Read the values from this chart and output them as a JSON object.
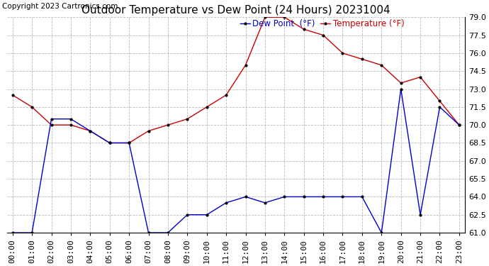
{
  "title": "Outdoor Temperature vs Dew Point (24 Hours) 20231004",
  "copyright_text": "Copyright 2023 Cartronics.com",
  "legend_dew": "Dew Point  (°F)",
  "legend_temp": "Temperature (°F)",
  "hours": [
    0,
    1,
    2,
    3,
    4,
    5,
    6,
    7,
    8,
    9,
    10,
    11,
    12,
    13,
    14,
    15,
    16,
    17,
    18,
    19,
    20,
    21,
    22,
    23
  ],
  "temperature": [
    72.5,
    71.5,
    70.0,
    70.0,
    69.5,
    68.5,
    68.5,
    69.5,
    70.0,
    70.5,
    71.5,
    72.5,
    75.0,
    79.0,
    79.0,
    78.0,
    77.5,
    76.0,
    75.5,
    75.0,
    73.5,
    74.0,
    72.0,
    70.0
  ],
  "dew_point": [
    61.0,
    61.0,
    70.5,
    70.5,
    69.5,
    68.5,
    68.5,
    61.0,
    61.0,
    62.5,
    62.5,
    63.5,
    64.0,
    63.5,
    64.0,
    64.0,
    64.0,
    64.0,
    64.0,
    61.0,
    73.0,
    62.5,
    71.5,
    70.0
  ],
  "ylim": [
    61.0,
    79.0
  ],
  "yticks": [
    61.0,
    62.5,
    64.0,
    65.5,
    67.0,
    68.5,
    70.0,
    71.5,
    73.0,
    74.5,
    76.0,
    77.5,
    79.0
  ],
  "temp_color": "#cc0000",
  "dew_color": "#0000cc",
  "background_color": "#ffffff",
  "plot_bg_color": "#ffffff",
  "grid_color": "#aaaaaa",
  "title_fontsize": 11,
  "tick_fontsize": 8,
  "legend_fontsize": 8.5,
  "copyright_fontsize": 7.5
}
